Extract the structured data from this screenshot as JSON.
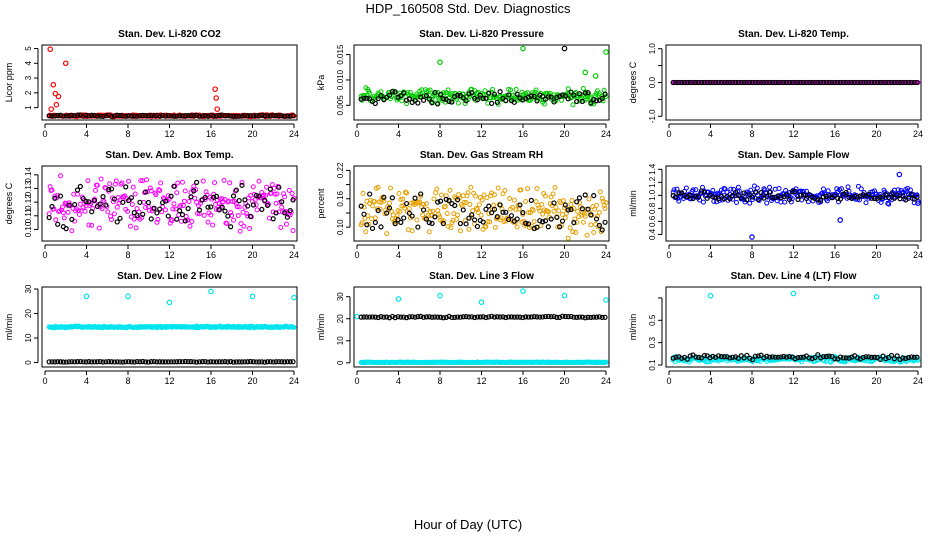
{
  "page": {
    "title": "HDP_160508  Std. Dev. Diagnostics",
    "footer": "Hour of Day (UTC)"
  },
  "chart_data": [
    {
      "type": "scatter",
      "title": "Stan. Dev. Li-820 CO2",
      "ylabel": "Licor ppm",
      "xlim": [
        0,
        24
      ],
      "ylim": [
        0.3,
        5.1
      ],
      "xticks": [
        0,
        4,
        8,
        12,
        16,
        20,
        24
      ],
      "yticks": [
        1,
        2,
        3,
        4,
        5
      ],
      "grid": false,
      "legend": "none",
      "series": [
        {
          "color": "#ff0000",
          "base": 0.45,
          "spread": 0.08,
          "points": [
            [
              0.5,
              4.95
            ],
            [
              0.8,
              2.55
            ],
            [
              1.0,
              1.95
            ],
            [
              1.3,
              1.75
            ],
            [
              2.0,
              4.0
            ],
            [
              1.1,
              1.2
            ],
            [
              0.6,
              0.9
            ],
            [
              16.4,
              2.25
            ],
            [
              16.5,
              1.65
            ],
            [
              16.6,
              0.9
            ]
          ]
        },
        {
          "color": "#000000",
          "base": 0.45,
          "spread": 0.06,
          "points": []
        }
      ]
    },
    {
      "type": "scatter",
      "title": "Stan. Dev. Li-820 Pressure",
      "ylabel": "kPa",
      "xlim": [
        0,
        24
      ],
      "ylim": [
        0.0025,
        0.0165
      ],
      "xticks": [
        0,
        4,
        8,
        12,
        16,
        20,
        24
      ],
      "yticks": [
        0.005,
        0.01,
        0.015
      ],
      "ytick_labels": [
        "0.005",
        "0.010",
        "0.015"
      ],
      "grid": false,
      "legend": "none",
      "series": [
        {
          "color": "#00cc00",
          "base": 0.0068,
          "spread": 0.0018,
          "points": [
            [
              8.0,
              0.0135
            ],
            [
              16.0,
              0.0162
            ],
            [
              24.0,
              0.0155
            ],
            [
              22.0,
              0.0115
            ],
            [
              23.0,
              0.0108
            ]
          ]
        },
        {
          "color": "#000000",
          "base": 0.0065,
          "spread": 0.0015,
          "points": [
            [
              20.0,
              0.0162
            ]
          ]
        }
      ]
    },
    {
      "type": "scatter",
      "title": "Stan. Dev. Li-820 Temp.",
      "ylabel": "degrees C",
      "xlim": [
        0,
        24
      ],
      "ylim": [
        -1.05,
        1.05
      ],
      "xticks": [
        0,
        4,
        8,
        12,
        16,
        20,
        24
      ],
      "yticks": [
        -1.0,
        -0.5,
        0.0,
        0.5,
        1.0
      ],
      "ytick_labels": [
        "-1.0",
        "",
        "0.0",
        "",
        "1.0"
      ],
      "grid": false,
      "legend": "none",
      "series": [
        {
          "color": "#ff00ff",
          "base": 0.0,
          "spread": 0.0,
          "points": []
        },
        {
          "color": "#000000",
          "base": 0.0,
          "spread": 0.0,
          "points": []
        }
      ]
    },
    {
      "type": "scatter",
      "title": "Stan. Dev. Amb. Box Temp.",
      "ylabel": "degrees C",
      "xlim": [
        0,
        24
      ],
      "ylim": [
        0.093,
        0.145
      ],
      "xticks": [
        0,
        4,
        8,
        12,
        16,
        20,
        24
      ],
      "yticks": [
        0.1,
        0.11,
        0.12,
        0.13,
        0.14
      ],
      "ytick_labels": [
        "0.10",
        "0.11",
        "0.12",
        "0.13",
        "0.14"
      ],
      "grid": false,
      "legend": "none",
      "series": [
        {
          "color": "#ff00ff",
          "base": 0.119,
          "spread": 0.022,
          "points": []
        },
        {
          "color": "#000000",
          "base": 0.118,
          "spread": 0.018,
          "points": []
        }
      ]
    },
    {
      "type": "scatter",
      "title": "Stan. Dev. Gas Stream RH",
      "ylabel": "percent",
      "xlim": [
        0,
        24
      ],
      "ylim": [
        0.075,
        0.225
      ],
      "xticks": [
        0,
        4,
        8,
        12,
        16,
        20,
        24
      ],
      "yticks": [
        0.1,
        0.13,
        0.16,
        0.19,
        0.22
      ],
      "ytick_labels": [
        "0.10",
        "",
        "0.16",
        "",
        "0.22"
      ],
      "grid": false,
      "legend": "none",
      "series": [
        {
          "color": "#e69f00",
          "base": 0.135,
          "spread": 0.06,
          "points": []
        },
        {
          "color": "#000000",
          "base": 0.13,
          "spread": 0.045,
          "points": []
        }
      ]
    },
    {
      "type": "scatter",
      "title": "Stan. Dev. Sample Flow",
      "ylabel": "ml/min",
      "xlim": [
        0,
        24
      ],
      "ylim": [
        0.33,
        1.42
      ],
      "xticks": [
        0,
        4,
        8,
        12,
        16,
        20,
        24
      ],
      "yticks": [
        0.4,
        0.6,
        0.8,
        1.0,
        1.2,
        1.4
      ],
      "ytick_labels": [
        "0.4",
        "0.6",
        "0.8",
        "1.0",
        "1.2",
        "1.4"
      ],
      "grid": false,
      "legend": "none",
      "series": [
        {
          "color": "#0000ff",
          "base": 1.0,
          "spread": 0.15,
          "points": [
            [
              8.0,
              0.36
            ],
            [
              16.5,
              0.62
            ],
            [
              22.2,
              1.32
            ],
            [
              24.0,
              0.88
            ]
          ]
        },
        {
          "color": "#000000",
          "base": 0.98,
          "spread": 0.1,
          "points": []
        }
      ]
    },
    {
      "type": "scatter",
      "title": "Stan. Dev. Line 2 Flow",
      "ylabel": "ml/min",
      "xlim": [
        0,
        24
      ],
      "ylim": [
        -1,
        30
      ],
      "xticks": [
        0,
        4,
        8,
        12,
        16,
        20,
        24
      ],
      "yticks": [
        0,
        10,
        20,
        30
      ],
      "grid": false,
      "legend": "none",
      "series": [
        {
          "color": "#00e5ee",
          "base": 14.5,
          "spread": 0.4,
          "points": [
            [
              4.0,
              27.0
            ],
            [
              8.0,
              27.0
            ],
            [
              12.0,
              24.5
            ],
            [
              16.0,
              29.0
            ],
            [
              20.0,
              27.0
            ],
            [
              24.0,
              26.5
            ]
          ]
        },
        {
          "color": "#000000",
          "base": 0.3,
          "spread": 0.15,
          "points": []
        }
      ]
    },
    {
      "type": "scatter",
      "title": "Stan. Dev. Line 3 Flow",
      "ylabel": "ml/min",
      "xlim": [
        0,
        24
      ],
      "ylim": [
        -1,
        33.5
      ],
      "xticks": [
        0,
        4,
        8,
        12,
        16,
        20,
        24
      ],
      "yticks": [
        0,
        10,
        20,
        30
      ],
      "grid": false,
      "legend": "none",
      "series": [
        {
          "color": "#00e5ee",
          "base": 0.2,
          "spread": 0.2,
          "points": [
            [
              4.0,
              29.0
            ],
            [
              8.0,
              30.5
            ],
            [
              12.0,
              27.5
            ],
            [
              16.0,
              32.5
            ],
            [
              20.0,
              30.5
            ],
            [
              24.0,
              28.5
            ],
            [
              0.0,
              21.0
            ]
          ]
        },
        {
          "color": "#000000",
          "base": 20.8,
          "spread": 0.4,
          "points": []
        }
      ]
    },
    {
      "type": "scatter",
      "title": "Stan. Dev. Line 4 (LT) Flow",
      "ylabel": "ml/min",
      "xlim": [
        0,
        24
      ],
      "ylim": [
        0.1,
        0.78
      ],
      "xticks": [
        0,
        4,
        8,
        12,
        16,
        20,
        24
      ],
      "yticks": [
        0.1,
        0.3,
        0.5,
        0.7
      ],
      "ytick_labels": [
        "0.1",
        "0.3",
        "0.5",
        ""
      ],
      "grid": false,
      "legend": "none",
      "series": [
        {
          "color": "#00e5ee",
          "base": 0.15,
          "spread": 0.03,
          "points": [
            [
              4.0,
              0.72
            ],
            [
              12.0,
              0.74
            ],
            [
              20.0,
              0.71
            ]
          ]
        },
        {
          "color": "#000000",
          "base": 0.17,
          "spread": 0.025,
          "points": []
        }
      ]
    }
  ]
}
